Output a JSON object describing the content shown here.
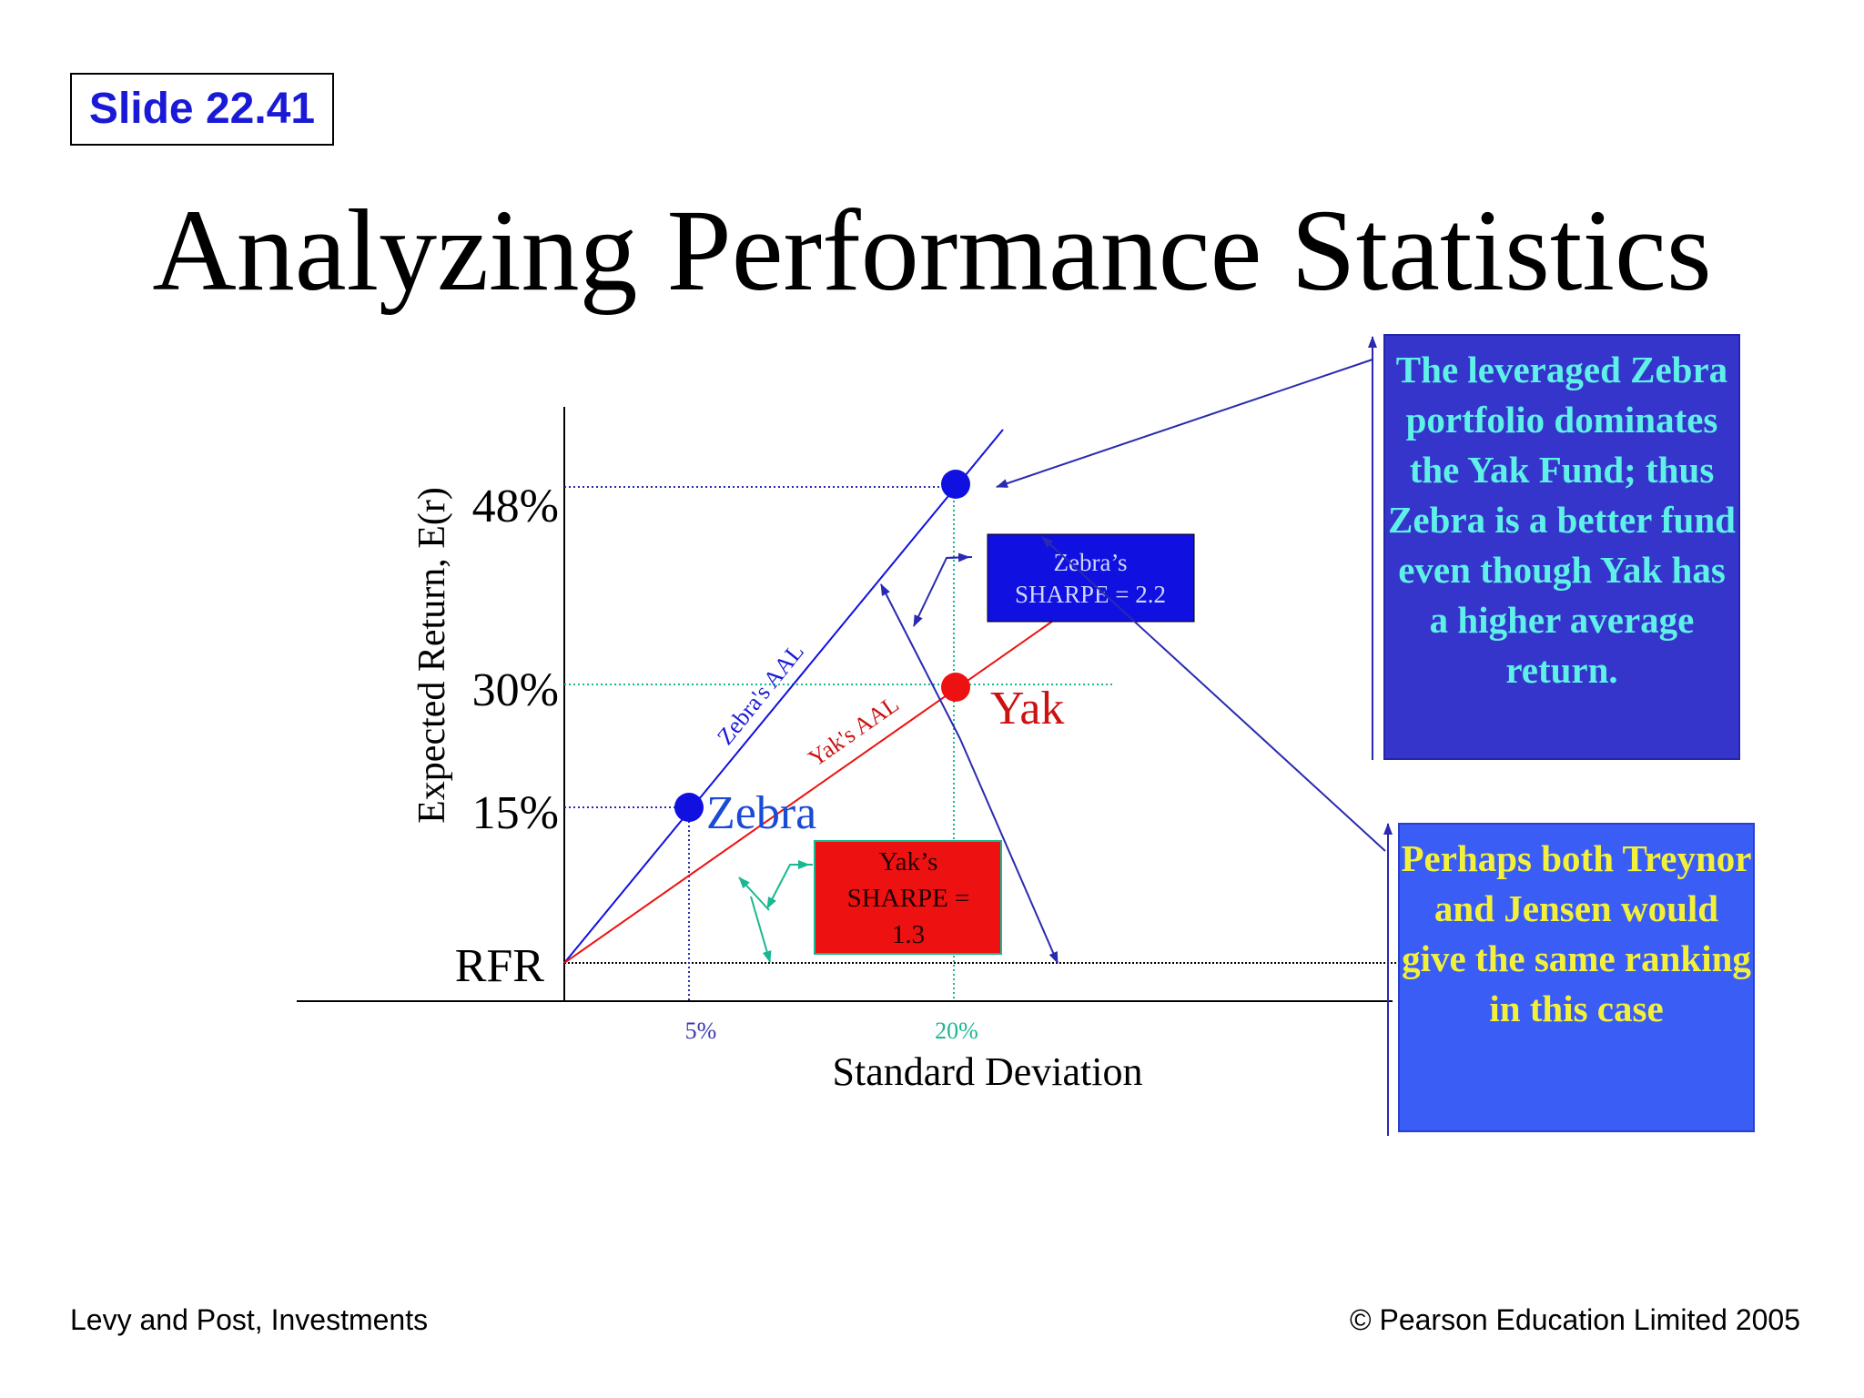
{
  "slide_label": "Slide 22.41",
  "title": "Analyzing Performance Statistics",
  "footer": {
    "left": "Levy and Post, Investments",
    "right": "© Pearson Education Limited 2005"
  },
  "callouts": {
    "zebra_dominates": "The leveraged Zebra portfolio dominates the Yak Fund; thus Zebra is a better fund even though Yak has a higher average return.",
    "same_ranking": "Perhaps both Treynor and Jensen would give the same ranking in this case"
  },
  "colors": {
    "zebra": "#1010e0",
    "yak": "#ee1111",
    "teal": "#18b890",
    "zebra_box": "#3535cc",
    "same_box": "#3a5df5"
  },
  "chart_data": {
    "type": "scatter",
    "xlabel": "Standard Deviation",
    "ylabel": "Expected Return, E(r)",
    "x_ticks": [
      "5%",
      "20%"
    ],
    "y_ticks": [
      "RFR",
      "15%",
      "30%",
      "48%"
    ],
    "points": [
      {
        "name": "Zebra",
        "x": 5,
        "y": 15
      },
      {
        "name": "Yak",
        "x": 20,
        "y": 30
      },
      {
        "name": "Leveraged Zebra",
        "x": 20,
        "y": 48
      }
    ],
    "lines": [
      {
        "name": "Zebra's AAL"
      },
      {
        "name": "Yak's AAL"
      }
    ],
    "annotations": {
      "zebra_sharpe": [
        "Zebra’s",
        "SHARPE = 2.2"
      ],
      "yak_sharpe": [
        "Yak’s",
        "SHARPE =",
        "1.3"
      ]
    }
  }
}
